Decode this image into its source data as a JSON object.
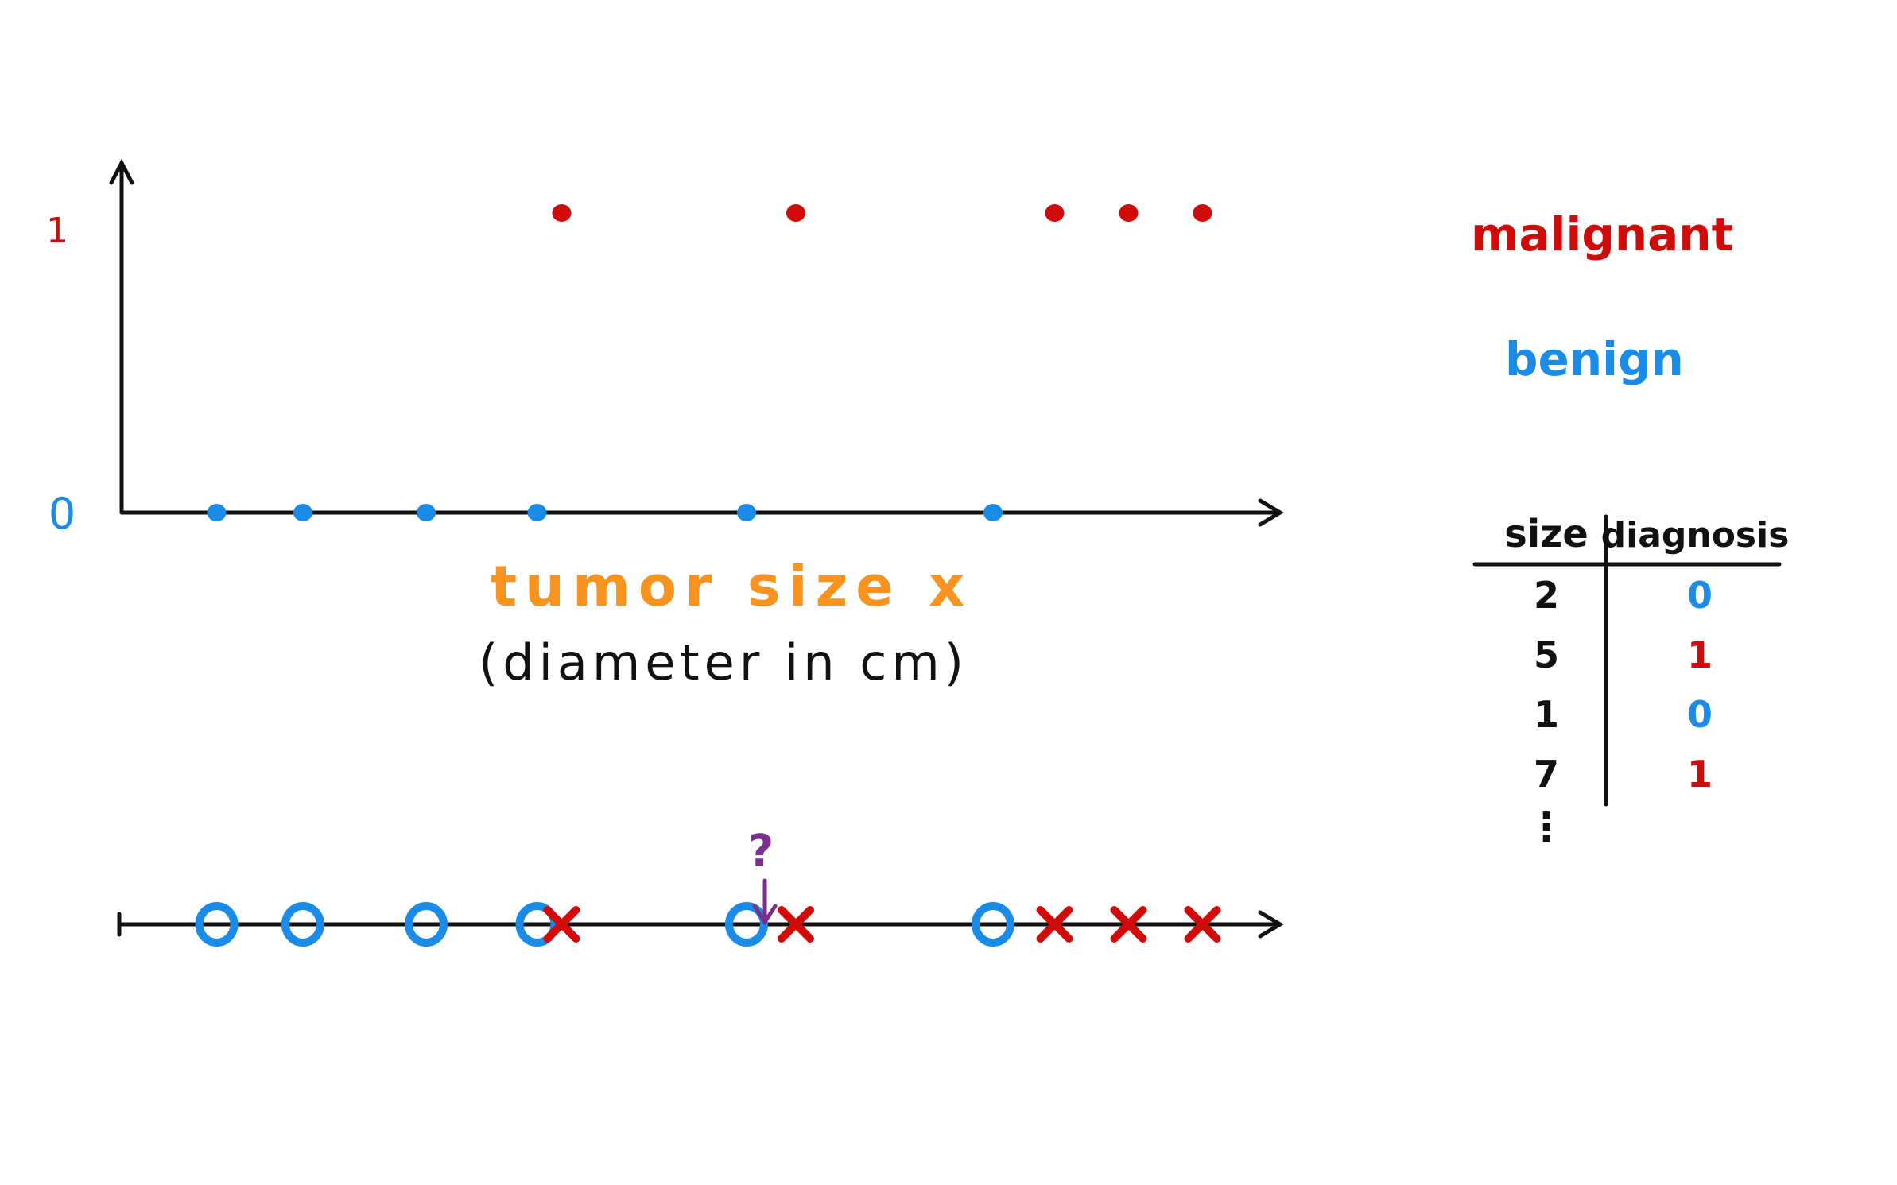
{
  "colors": {
    "ink": "#111111",
    "malignant": "#d10a0a",
    "benign": "#1a8be6",
    "axis_title": "#f7931e",
    "question": "#7a2f8e"
  },
  "chart_data": [
    {
      "type": "scatter",
      "x_tick_labels": [],
      "y_tick_labels": [
        "0",
        "1"
      ],
      "xlabel": "tumor size x",
      "xlabel_sub": "(diameter in cm)",
      "series": [
        {
          "name": "benign",
          "y": 0,
          "points": [
            1.7,
            2.4,
            3.4,
            4.3,
            6.0,
            8.0
          ],
          "marker": "dot"
        },
        {
          "name": "malignant",
          "y": 1,
          "points": [
            4.5,
            6.4,
            8.5,
            9.1,
            9.7
          ],
          "marker": "dot"
        }
      ]
    },
    {
      "type": "scatter",
      "series": [
        {
          "name": "benign",
          "points": [
            1.7,
            2.4,
            3.4,
            4.3,
            6.0,
            8.0
          ],
          "marker": "o"
        },
        {
          "name": "malignant",
          "points": [
            4.5,
            6.4,
            8.5,
            9.1,
            9.7
          ],
          "marker": "x"
        }
      ],
      "query": {
        "label": "?",
        "x": 5.85
      }
    }
  ],
  "legend": {
    "malignant": "malignant",
    "benign": "benign"
  },
  "table": {
    "headers": [
      "size",
      "diagnosis"
    ],
    "rows": [
      [
        "2",
        "0"
      ],
      [
        "5",
        "1"
      ],
      [
        "1",
        "0"
      ],
      [
        "7",
        "1"
      ]
    ],
    "more": "⋮"
  }
}
